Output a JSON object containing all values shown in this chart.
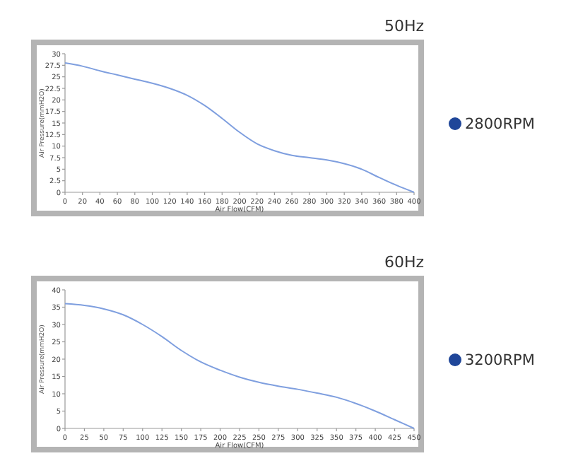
{
  "chart_data": [
    {
      "type": "line",
      "title": "50Hz",
      "xlabel": "Air Flow(CFM)",
      "ylabel": "Air Pressure(mmH2O)",
      "legend": "right",
      "grid": false,
      "x": [
        0,
        20,
        40,
        60,
        80,
        100,
        120,
        140,
        160,
        180,
        200,
        220,
        240,
        260,
        280,
        300,
        320,
        340,
        360,
        380,
        400
      ],
      "xlim": [
        0,
        400
      ],
      "xticks": [
        0,
        20,
        40,
        60,
        80,
        100,
        120,
        140,
        160,
        180,
        200,
        220,
        240,
        260,
        280,
        300,
        320,
        340,
        360,
        380,
        400
      ],
      "ylim": [
        0,
        30
      ],
      "yticks": [
        0,
        2.5,
        5,
        7.5,
        10,
        12.5,
        15,
        17.5,
        20,
        22.5,
        25,
        27.5,
        30
      ],
      "series": [
        {
          "name": "2800RPM",
          "color": "#7f9fdf",
          "values": [
            28,
            27.3,
            26.3,
            25.4,
            24.5,
            23.6,
            22.5,
            21,
            18.8,
            16,
            13,
            10.5,
            9,
            8,
            7.5,
            7,
            6.2,
            5,
            3.2,
            1.5,
            0
          ]
        }
      ]
    },
    {
      "type": "line",
      "title": "60Hz",
      "xlabel": "Air Flow(CFM)",
      "ylabel": "Air Pressure(mmH2O)",
      "legend": "right",
      "grid": false,
      "x": [
        0,
        25,
        50,
        75,
        100,
        125,
        150,
        175,
        200,
        225,
        250,
        275,
        300,
        325,
        350,
        375,
        400,
        425,
        450
      ],
      "xlim": [
        0,
        450
      ],
      "xticks": [
        0,
        25,
        50,
        75,
        100,
        125,
        150,
        175,
        200,
        225,
        250,
        275,
        300,
        325,
        350,
        375,
        400,
        425,
        450
      ],
      "ylim": [
        0,
        40
      ],
      "yticks": [
        0,
        5,
        10,
        15,
        20,
        25,
        30,
        35,
        40
      ],
      "series": [
        {
          "name": "3200RPM",
          "color": "#7f9fdf",
          "values": [
            36,
            35.5,
            34.5,
            32.8,
            30,
            26.5,
            22.5,
            19.2,
            16.8,
            14.8,
            13.3,
            12.2,
            11.3,
            10.2,
            9,
            7.2,
            5,
            2.5,
            0
          ]
        }
      ]
    }
  ]
}
